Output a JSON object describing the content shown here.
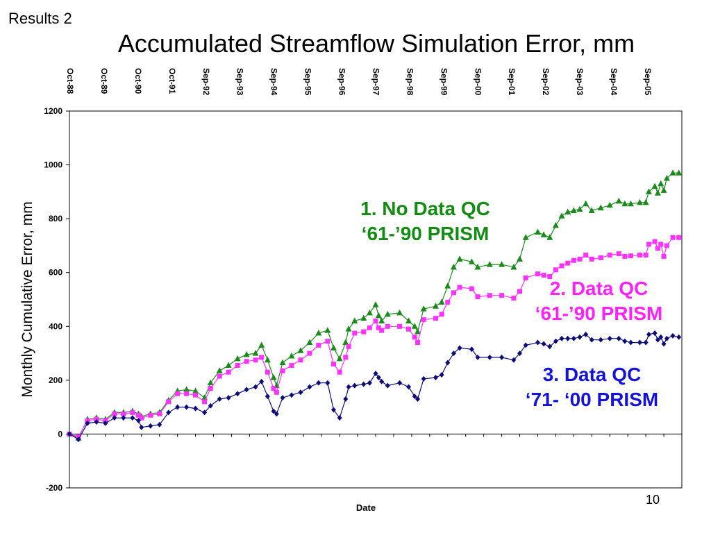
{
  "slide": {
    "corner_label": "Results 2",
    "title": "Accumulated Streamflow Simulation Error, mm",
    "page_number": "10"
  },
  "annotations": {
    "s1_line1": "1. No Data QC",
    "s1_line2": "‘61-’90 PRISM",
    "s2_line1": "2. Data QC",
    "s2_line2": "‘61-’90 PRISM",
    "s3_line1": "3. Data QC",
    "s3_line2": "‘71- ‘00 PRISM"
  },
  "colors": {
    "series1": "#1a8a1a",
    "series2": "#ff33ff",
    "series3": "#0d0d7a",
    "annotation1": "#148c14",
    "annotation2": "#ff22ff",
    "annotation3": "#1414d9"
  },
  "chart_data": {
    "type": "line",
    "title": "",
    "xlabel": "Date",
    "ylabel": "Monthly Cumulative Error, mm",
    "ylim": [
      -200,
      1200
    ],
    "yticks": [
      -200,
      0,
      200,
      400,
      600,
      800,
      1000,
      1200
    ],
    "grid": "horizontal zero line only",
    "xtick_labels": [
      "Oct-88",
      "Oct-89",
      "Oct-90",
      "Oct-91",
      "Sep-92",
      "Sep-93",
      "Sep-94",
      "Sep-95",
      "Sep-96",
      "Sep-97",
      "Sep-98",
      "Sep-99",
      "Sep-00",
      "Sep-01",
      "Sep-02",
      "Sep-03",
      "Sep-04",
      "Sep-05"
    ],
    "x_unit": "months since Oct-88",
    "series": [
      {
        "name": "1. No Data QC ‘61-’90 PRISM",
        "marker": "triangle",
        "points": [
          [
            0,
            0
          ],
          [
            3,
            -15
          ],
          [
            6,
            55
          ],
          [
            9,
            60
          ],
          [
            12,
            55
          ],
          [
            15,
            80
          ],
          [
            18,
            80
          ],
          [
            21,
            85
          ],
          [
            23,
            75
          ],
          [
            24,
            65
          ],
          [
            27,
            75
          ],
          [
            30,
            80
          ],
          [
            33,
            125
          ],
          [
            36,
            160
          ],
          [
            39,
            165
          ],
          [
            42,
            160
          ],
          [
            45,
            135
          ],
          [
            47,
            190
          ],
          [
            50,
            235
          ],
          [
            53,
            255
          ],
          [
            56,
            280
          ],
          [
            59,
            295
          ],
          [
            62,
            300
          ],
          [
            64,
            330
          ],
          [
            66,
            275
          ],
          [
            68,
            210
          ],
          [
            69,
            180
          ],
          [
            71,
            265
          ],
          [
            74,
            290
          ],
          [
            77,
            310
          ],
          [
            80,
            340
          ],
          [
            83,
            375
          ],
          [
            86,
            385
          ],
          [
            88,
            320
          ],
          [
            90,
            280
          ],
          [
            92,
            340
          ],
          [
            93,
            390
          ],
          [
            95,
            420
          ],
          [
            98,
            430
          ],
          [
            100,
            450
          ],
          [
            102,
            480
          ],
          [
            103,
            440
          ],
          [
            104,
            420
          ],
          [
            106,
            445
          ],
          [
            110,
            450
          ],
          [
            113,
            420
          ],
          [
            115,
            400
          ],
          [
            116,
            380
          ],
          [
            118,
            465
          ],
          [
            122,
            475
          ],
          [
            124,
            490
          ],
          [
            126,
            550
          ],
          [
            128,
            620
          ],
          [
            130,
            650
          ],
          [
            134,
            640
          ],
          [
            136,
            620
          ],
          [
            140,
            630
          ],
          [
            144,
            630
          ],
          [
            148,
            620
          ],
          [
            150,
            650
          ],
          [
            152,
            730
          ],
          [
            156,
            750
          ],
          [
            158,
            740
          ],
          [
            160,
            730
          ],
          [
            162,
            775
          ],
          [
            164,
            810
          ],
          [
            166,
            825
          ],
          [
            168,
            830
          ],
          [
            170,
            835
          ],
          [
            172,
            855
          ],
          [
            174,
            830
          ],
          [
            177,
            840
          ],
          [
            180,
            850
          ],
          [
            183,
            865
          ],
          [
            185,
            855
          ],
          [
            187,
            855
          ],
          [
            190,
            860
          ],
          [
            192,
            860
          ],
          [
            193,
            900
          ],
          [
            195,
            920
          ],
          [
            196,
            895
          ],
          [
            197,
            930
          ],
          [
            198,
            905
          ],
          [
            199,
            950
          ],
          [
            201,
            970
          ],
          [
            203,
            970
          ]
        ]
      },
      {
        "name": "2. Data QC ‘61-’90 PRISM",
        "marker": "square",
        "points": [
          [
            0,
            0
          ],
          [
            3,
            -10
          ],
          [
            6,
            50
          ],
          [
            9,
            55
          ],
          [
            12,
            50
          ],
          [
            15,
            75
          ],
          [
            18,
            75
          ],
          [
            21,
            80
          ],
          [
            23,
            70
          ],
          [
            24,
            60
          ],
          [
            27,
            70
          ],
          [
            30,
            75
          ],
          [
            33,
            120
          ],
          [
            36,
            150
          ],
          [
            39,
            150
          ],
          [
            42,
            145
          ],
          [
            45,
            120
          ],
          [
            47,
            170
          ],
          [
            50,
            215
          ],
          [
            53,
            230
          ],
          [
            56,
            255
          ],
          [
            59,
            270
          ],
          [
            62,
            275
          ],
          [
            64,
            285
          ],
          [
            66,
            230
          ],
          [
            68,
            170
          ],
          [
            69,
            155
          ],
          [
            71,
            235
          ],
          [
            74,
            255
          ],
          [
            77,
            275
          ],
          [
            80,
            300
          ],
          [
            83,
            330
          ],
          [
            86,
            345
          ],
          [
            88,
            260
          ],
          [
            90,
            230
          ],
          [
            92,
            285
          ],
          [
            93,
            325
          ],
          [
            95,
            375
          ],
          [
            98,
            380
          ],
          [
            100,
            395
          ],
          [
            102,
            420
          ],
          [
            103,
            395
          ],
          [
            104,
            385
          ],
          [
            106,
            400
          ],
          [
            110,
            400
          ],
          [
            113,
            390
          ],
          [
            115,
            360
          ],
          [
            116,
            340
          ],
          [
            118,
            425
          ],
          [
            122,
            430
          ],
          [
            124,
            445
          ],
          [
            126,
            490
          ],
          [
            128,
            525
          ],
          [
            130,
            545
          ],
          [
            134,
            540
          ],
          [
            136,
            510
          ],
          [
            140,
            515
          ],
          [
            144,
            515
          ],
          [
            148,
            505
          ],
          [
            150,
            530
          ],
          [
            152,
            580
          ],
          [
            156,
            595
          ],
          [
            158,
            590
          ],
          [
            160,
            585
          ],
          [
            162,
            610
          ],
          [
            164,
            625
          ],
          [
            166,
            635
          ],
          [
            168,
            645
          ],
          [
            170,
            650
          ],
          [
            172,
            665
          ],
          [
            174,
            650
          ],
          [
            177,
            655
          ],
          [
            180,
            665
          ],
          [
            183,
            670
          ],
          [
            185,
            660
          ],
          [
            187,
            662
          ],
          [
            190,
            665
          ],
          [
            192,
            665
          ],
          [
            193,
            705
          ],
          [
            195,
            715
          ],
          [
            196,
            690
          ],
          [
            197,
            705
          ],
          [
            198,
            660
          ],
          [
            199,
            700
          ],
          [
            201,
            730
          ],
          [
            203,
            730
          ]
        ]
      },
      {
        "name": "3. Data QC ‘71- ‘00 PRISM",
        "marker": "diamond",
        "points": [
          [
            0,
            0
          ],
          [
            3,
            -20
          ],
          [
            6,
            40
          ],
          [
            9,
            45
          ],
          [
            12,
            40
          ],
          [
            15,
            60
          ],
          [
            18,
            60
          ],
          [
            21,
            60
          ],
          [
            23,
            50
          ],
          [
            24,
            25
          ],
          [
            27,
            30
          ],
          [
            30,
            35
          ],
          [
            33,
            80
          ],
          [
            36,
            100
          ],
          [
            39,
            100
          ],
          [
            42,
            95
          ],
          [
            45,
            80
          ],
          [
            47,
            105
          ],
          [
            50,
            130
          ],
          [
            53,
            135
          ],
          [
            56,
            150
          ],
          [
            59,
            165
          ],
          [
            62,
            175
          ],
          [
            64,
            195
          ],
          [
            66,
            140
          ],
          [
            68,
            85
          ],
          [
            69,
            75
          ],
          [
            71,
            135
          ],
          [
            74,
            145
          ],
          [
            77,
            155
          ],
          [
            80,
            175
          ],
          [
            83,
            190
          ],
          [
            86,
            190
          ],
          [
            88,
            90
          ],
          [
            90,
            60
          ],
          [
            92,
            130
          ],
          [
            93,
            175
          ],
          [
            95,
            180
          ],
          [
            98,
            185
          ],
          [
            100,
            190
          ],
          [
            102,
            225
          ],
          [
            103,
            210
          ],
          [
            104,
            195
          ],
          [
            106,
            180
          ],
          [
            110,
            190
          ],
          [
            113,
            175
          ],
          [
            115,
            140
          ],
          [
            116,
            130
          ],
          [
            118,
            205
          ],
          [
            122,
            210
          ],
          [
            124,
            220
          ],
          [
            126,
            265
          ],
          [
            128,
            300
          ],
          [
            130,
            320
          ],
          [
            134,
            315
          ],
          [
            136,
            285
          ],
          [
            140,
            285
          ],
          [
            144,
            285
          ],
          [
            148,
            275
          ],
          [
            150,
            300
          ],
          [
            152,
            330
          ],
          [
            156,
            340
          ],
          [
            158,
            335
          ],
          [
            160,
            325
          ],
          [
            162,
            345
          ],
          [
            164,
            355
          ],
          [
            166,
            355
          ],
          [
            168,
            355
          ],
          [
            170,
            360
          ],
          [
            172,
            370
          ],
          [
            174,
            350
          ],
          [
            177,
            350
          ],
          [
            180,
            355
          ],
          [
            183,
            355
          ],
          [
            185,
            345
          ],
          [
            187,
            340
          ],
          [
            190,
            340
          ],
          [
            192,
            340
          ],
          [
            193,
            370
          ],
          [
            195,
            375
          ],
          [
            196,
            350
          ],
          [
            197,
            360
          ],
          [
            198,
            335
          ],
          [
            199,
            355
          ],
          [
            201,
            365
          ],
          [
            203,
            360
          ]
        ]
      }
    ]
  }
}
